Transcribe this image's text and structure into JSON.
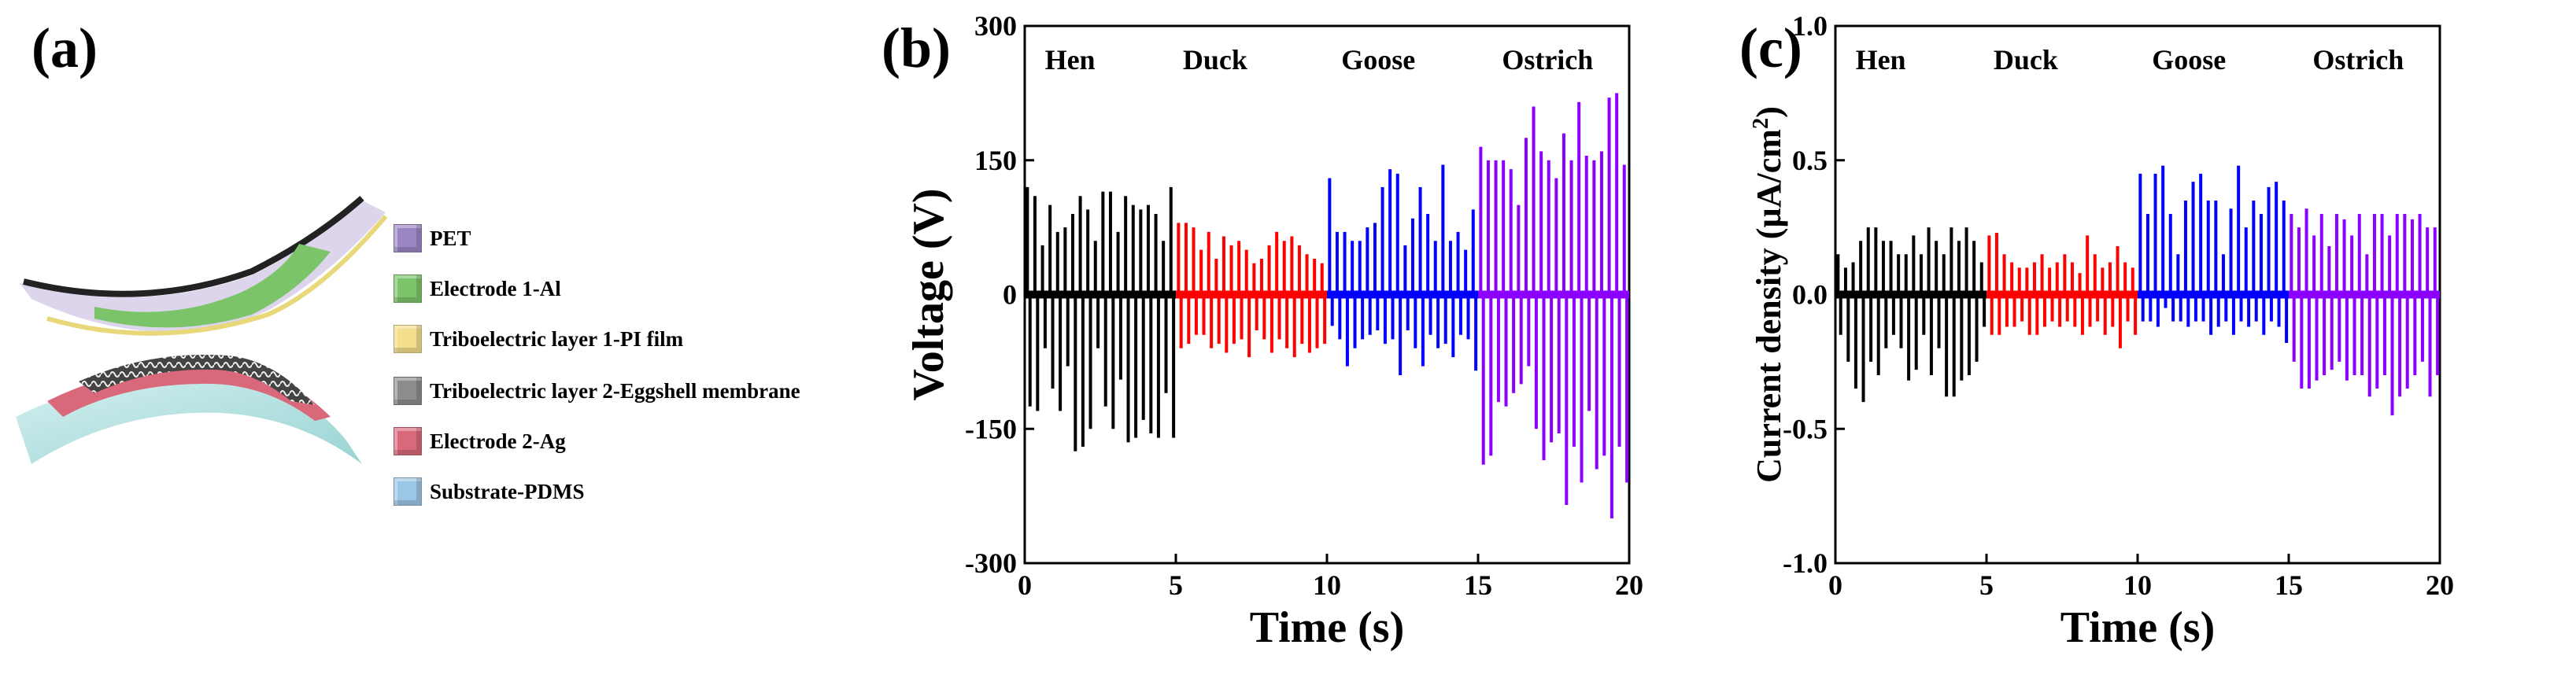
{
  "panels": {
    "a": {
      "label": "(a)"
    },
    "b": {
      "label": "(b)"
    },
    "c": {
      "label": "(c)"
    }
  },
  "legend": {
    "items": [
      {
        "text": "PET",
        "color": "#9b86c4",
        "icon": "cube-icon"
      },
      {
        "text": "Electrode 1-Al",
        "color": "#7cc46a",
        "icon": "cube-icon"
      },
      {
        "text": "Triboelectric  layer 1-PI film",
        "color": "#f2de8c",
        "icon": "cube-icon"
      },
      {
        "text": "Triboelectric  layer 2-Eggshell membrane",
        "color": "#8c8c8c",
        "icon": "cube-icon"
      },
      {
        "text": "Electrode 2-Ag",
        "color": "#d8687a",
        "icon": "cube-icon"
      },
      {
        "text": "Substrate-PDMS",
        "color": "#9cc6e6",
        "icon": "cube-icon"
      }
    ]
  },
  "chart_data": [
    {
      "type": "line",
      "panel": "(b)",
      "xlabel": "Time (s)",
      "ylabel": "Voltage (V)",
      "xlim": [
        0,
        20
      ],
      "ylim": [
        -300,
        300
      ],
      "x_ticks": [
        0,
        5,
        10,
        15,
        20
      ],
      "y_ticks": [
        -300,
        -150,
        0,
        150,
        300
      ],
      "annotations": [
        "Hen",
        "Duck",
        "Goose",
        "Ostrich"
      ],
      "series": [
        {
          "color": "#000000",
          "x_range": [
            0,
            5
          ],
          "pulses": 20,
          "peak_max": [
            120,
            110,
            55,
            100,
            70,
            75,
            90,
            110,
            95,
            60,
            115,
            115,
            70,
            110,
            100,
            95,
            100,
            90,
            60,
            120
          ],
          "peak_min": [
            -125,
            -130,
            -60,
            -105,
            -130,
            -80,
            -175,
            -170,
            -150,
            -60,
            -125,
            -150,
            -95,
            -165,
            -160,
            -140,
            -155,
            -160,
            -110,
            -160
          ]
        },
        {
          "color": "#ff0000",
          "x_range": [
            5,
            10
          ],
          "pulses": 20,
          "peak_max": [
            80,
            80,
            75,
            50,
            70,
            40,
            65,
            55,
            60,
            50,
            35,
            40,
            55,
            70,
            60,
            65,
            55,
            45,
            40,
            35
          ],
          "peak_min": [
            -60,
            -55,
            -45,
            -45,
            -60,
            -55,
            -65,
            -55,
            -50,
            -70,
            -40,
            -50,
            -65,
            -50,
            -60,
            -70,
            -55,
            -65,
            -60,
            -55
          ]
        },
        {
          "color": "#0000ff",
          "x_range": [
            10,
            15
          ],
          "pulses": 20,
          "peak_max": [
            130,
            70,
            70,
            60,
            60,
            75,
            80,
            120,
            140,
            135,
            55,
            85,
            120,
            90,
            60,
            145,
            60,
            70,
            50,
            95
          ],
          "peak_min": [
            -35,
            -50,
            -80,
            -60,
            -50,
            -45,
            -40,
            -55,
            -50,
            -90,
            -40,
            -60,
            -80,
            -45,
            -60,
            -55,
            -70,
            -45,
            -50,
            -85
          ]
        },
        {
          "color": "#8b00ff",
          "x_range": [
            15,
            20
          ],
          "pulses": 20,
          "peak_max": [
            165,
            150,
            150,
            150,
            140,
            100,
            175,
            210,
            160,
            150,
            130,
            180,
            150,
            215,
            155,
            150,
            160,
            220,
            225,
            145
          ],
          "peak_min": [
            -190,
            -180,
            -120,
            -125,
            -110,
            -100,
            -80,
            -150,
            -185,
            -165,
            -155,
            -235,
            -170,
            -210,
            -130,
            -195,
            -180,
            -250,
            -170,
            -210
          ]
        }
      ]
    },
    {
      "type": "line",
      "panel": "(c)",
      "xlabel": "Time (s)",
      "ylabel": "Current density (µA/cm²)",
      "ylabel_main": "Current density (µA/cm",
      "ylabel_sup": "2",
      "ylabel_tail": ")",
      "xlim": [
        0,
        20
      ],
      "ylim": [
        -1.0,
        1.0
      ],
      "x_ticks": [
        0,
        5,
        10,
        15,
        20
      ],
      "y_ticks": [
        -1.0,
        -0.5,
        0.0,
        0.5,
        1.0
      ],
      "y_tick_labels": [
        "-1.0",
        "-0.5",
        "0.0",
        "0.5",
        "1.0"
      ],
      "annotations": [
        "Hen",
        "Duck",
        "Goose",
        "Ostrich"
      ],
      "series": [
        {
          "color": "#000000",
          "x_range": [
            0,
            5
          ],
          "pulses": 20,
          "peak_max": [
            0.15,
            0.1,
            0.12,
            0.2,
            0.25,
            0.25,
            0.2,
            0.2,
            0.15,
            0.15,
            0.22,
            0.15,
            0.25,
            0.2,
            0.15,
            0.25,
            0.2,
            0.25,
            0.2,
            0.12
          ],
          "peak_min": [
            -0.15,
            -0.25,
            -0.35,
            -0.4,
            -0.25,
            -0.3,
            -0.2,
            -0.15,
            -0.2,
            -0.32,
            -0.28,
            -0.15,
            -0.3,
            -0.2,
            -0.38,
            -0.38,
            -0.32,
            -0.3,
            -0.25,
            -0.12
          ]
        },
        {
          "color": "#ff0000",
          "x_range": [
            5,
            10
          ],
          "pulses": 20,
          "peak_max": [
            0.22,
            0.23,
            0.15,
            0.12,
            0.1,
            0.1,
            0.12,
            0.15,
            0.1,
            0.12,
            0.15,
            0.12,
            0.08,
            0.22,
            0.15,
            0.1,
            0.12,
            0.18,
            0.12,
            0.1
          ],
          "peak_min": [
            -0.15,
            -0.15,
            -0.12,
            -0.12,
            -0.1,
            -0.15,
            -0.15,
            -0.12,
            -0.1,
            -0.12,
            -0.1,
            -0.12,
            -0.15,
            -0.12,
            -0.1,
            -0.15,
            -0.12,
            -0.2,
            -0.1,
            -0.15
          ]
        },
        {
          "color": "#0000ff",
          "x_range": [
            10,
            15
          ],
          "pulses": 20,
          "peak_max": [
            0.45,
            0.3,
            0.45,
            0.48,
            0.3,
            0.15,
            0.35,
            0.42,
            0.45,
            0.35,
            0.35,
            0.15,
            0.32,
            0.48,
            0.25,
            0.35,
            0.3,
            0.4,
            0.42,
            0.35
          ],
          "peak_min": [
            -0.1,
            -0.1,
            -0.12,
            -0.05,
            -0.1,
            -0.1,
            -0.12,
            -0.1,
            -0.1,
            -0.15,
            -0.12,
            -0.1,
            -0.15,
            -0.1,
            -0.12,
            -0.1,
            -0.15,
            -0.1,
            -0.12,
            -0.18
          ]
        },
        {
          "color": "#8b00ff",
          "x_range": [
            15,
            20
          ],
          "pulses": 20,
          "peak_max": [
            0.3,
            0.25,
            0.32,
            0.22,
            0.3,
            0.18,
            0.3,
            0.28,
            0.22,
            0.3,
            0.15,
            0.3,
            0.3,
            0.22,
            0.3,
            0.3,
            0.28,
            0.3,
            0.25,
            0.25
          ],
          "peak_min": [
            -0.25,
            -0.35,
            -0.35,
            -0.32,
            -0.3,
            -0.28,
            -0.25,
            -0.32,
            -0.3,
            -0.3,
            -0.38,
            -0.35,
            -0.3,
            -0.45,
            -0.38,
            -0.35,
            -0.3,
            -0.25,
            -0.38,
            -0.3
          ]
        }
      ]
    }
  ]
}
